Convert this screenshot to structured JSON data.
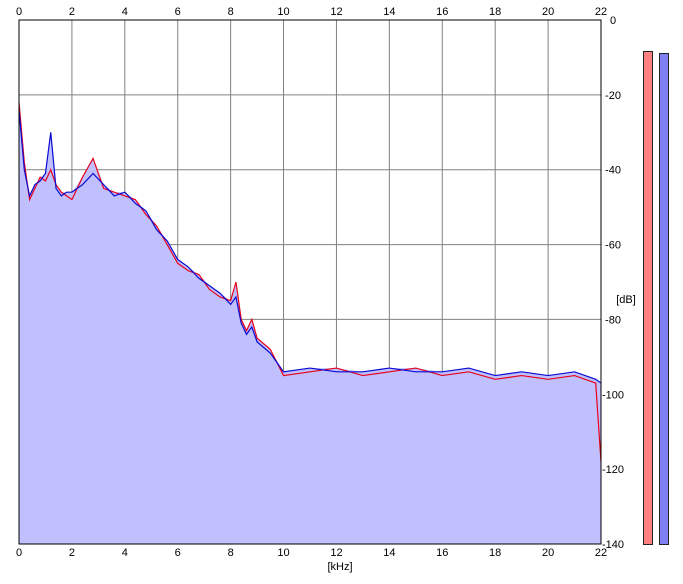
{
  "chart_data": {
    "type": "area",
    "xlabel": "[kHz]",
    "ylabel": "[dB]",
    "xlim": [
      0,
      22
    ],
    "ylim": [
      -140,
      0
    ],
    "x_ticks": [
      "0",
      "2",
      "4",
      "6",
      "8",
      "10",
      "12",
      "14",
      "16",
      "18",
      "20",
      "22"
    ],
    "y_ticks": [
      "0",
      "-20",
      "-40",
      "-60",
      "-80",
      "-100",
      "-120",
      "-140"
    ],
    "grid": true,
    "colors": {
      "left_channel": "#e8001a",
      "right_channel": "#0a0ad0",
      "fill": "#c0c0ff",
      "grid": "#808080",
      "left_meter": "#ff8080",
      "right_meter": "#8080f0"
    },
    "series": [
      {
        "channel": "left",
        "color": "#e8001a",
        "x": [
          0,
          0.2,
          0.4,
          0.6,
          0.8,
          1.0,
          1.2,
          1.4,
          1.6,
          1.8,
          2.0,
          2.4,
          2.8,
          3.2,
          3.6,
          4.0,
          4.4,
          4.8,
          5.2,
          5.6,
          6.0,
          6.4,
          6.8,
          7.2,
          7.6,
          8.0,
          8.2,
          8.4,
          8.6,
          8.8,
          9.0,
          9.5,
          10,
          11,
          12,
          13,
          14,
          15,
          16,
          17,
          18,
          19,
          20,
          21,
          21.8,
          22
        ],
        "y": [
          -22,
          -38,
          -48,
          -45,
          -42,
          -43,
          -40,
          -44,
          -46,
          -47,
          -48,
          -42,
          -37,
          -45,
          -46,
          -47,
          -48,
          -52,
          -55,
          -60,
          -65,
          -67,
          -68,
          -72,
          -74,
          -75,
          -70,
          -80,
          -83,
          -80,
          -85,
          -88,
          -95,
          -94,
          -93,
          -95,
          -94,
          -93,
          -95,
          -94,
          -96,
          -95,
          -96,
          -95,
          -97,
          -118
        ]
      },
      {
        "channel": "right",
        "color": "#0a0ad0",
        "x": [
          0,
          0.2,
          0.4,
          0.6,
          0.8,
          1.0,
          1.2,
          1.4,
          1.6,
          1.8,
          2.0,
          2.4,
          2.8,
          3.2,
          3.6,
          4.0,
          4.4,
          4.8,
          5.2,
          5.6,
          6.0,
          6.4,
          6.8,
          7.2,
          7.6,
          8.0,
          8.2,
          8.4,
          8.6,
          8.8,
          9.0,
          9.5,
          10,
          11,
          12,
          13,
          14,
          15,
          16,
          17,
          18,
          19,
          20,
          21,
          21.8,
          22
        ],
        "y": [
          -24,
          -40,
          -47,
          -44,
          -43,
          -41,
          -30,
          -45,
          -47,
          -46,
          -46,
          -44,
          -41,
          -44,
          -47,
          -46,
          -49,
          -51,
          -56,
          -59,
          -64,
          -66,
          -69,
          -71,
          -73,
          -76,
          -74,
          -81,
          -84,
          -82,
          -86,
          -89,
          -94,
          -93,
          -94,
          -94,
          -93,
          -94,
          -94,
          -93,
          -95,
          -94,
          -95,
          -94,
          -96,
          -97
        ]
      }
    ]
  }
}
